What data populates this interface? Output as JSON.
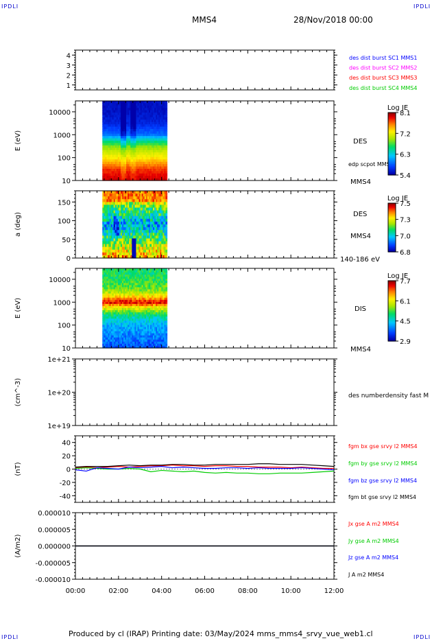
{
  "header": {
    "corner_tl": "IPDLI",
    "corner_tr": "IPDLI",
    "spacecraft": "MMS4",
    "date": "28/Nov/2018 00:00"
  },
  "footer": {
    "text": "Produced by cl (IRAP)   Printing date: 03/May/2024   mms_mms4_srvy_vue_web1.cl",
    "corner_bl": "IPDLI",
    "corner_br": "IPDLI"
  },
  "colors": {
    "blue": "#0000ff",
    "magenta": "#ff00ff",
    "red": "#ff0000",
    "green": "#00cc00",
    "black": "#000000"
  },
  "chart_data": [
    {
      "type": "line",
      "title": "",
      "ylabel": "",
      "ylim": [
        0.5,
        4.5
      ],
      "yticks": [
        "1",
        "2",
        "3",
        "4"
      ],
      "legend_placement": "right",
      "series": [
        {
          "name": "des dist burst SC1 MMS1",
          "color": "#0000ff",
          "values": []
        },
        {
          "name": "des dist burst SC2 MMS2",
          "color": "#ff00ff",
          "values": []
        },
        {
          "name": "des dist burst SC3 MMS3",
          "color": "#ff0000",
          "values": []
        },
        {
          "name": "des dist burst SC4 MMS4",
          "color": "#00cc00",
          "values": []
        }
      ]
    },
    {
      "type": "heatmap",
      "ylabel": "E (eV)",
      "yscale": "log",
      "ylim": [
        10,
        30000
      ],
      "yticks": [
        "10",
        "100",
        "1000",
        "10000"
      ],
      "instrument": "DES",
      "sublabel": "edp scpot MMS4",
      "satlabel": "MMS4",
      "colorbar": {
        "title": "Log JE",
        "ticks": [
          "8.1",
          "7.2",
          "6.3",
          "5.4"
        ]
      },
      "data_time_range": [
        "01:15",
        "04:15"
      ],
      "energy_profile": {
        "energies": [
          10,
          30,
          100,
          300,
          600,
          1000,
          3000,
          10000,
          30000
        ],
        "log_je": [
          8.0,
          7.8,
          7.3,
          6.9,
          6.4,
          5.9,
          5.6,
          5.5,
          5.5
        ]
      }
    },
    {
      "type": "heatmap",
      "ylabel": "a (deg)",
      "ylim": [
        0,
        180
      ],
      "yticks": [
        "0",
        "50",
        "100",
        "150"
      ],
      "instrument": "DES",
      "satlabel": "MMS4",
      "energy_range": "140-186 eV",
      "colorbar": {
        "title": "Log JE",
        "ticks": [
          "7.5",
          "7.3",
          "7.0",
          "6.8"
        ]
      },
      "data_time_range": [
        "01:15",
        "04:15"
      ]
    },
    {
      "type": "heatmap",
      "ylabel": "E (eV)",
      "yscale": "log",
      "ylim": [
        10,
        30000
      ],
      "yticks": [
        "10",
        "100",
        "1000",
        "10000"
      ],
      "instrument": "DIS",
      "satlabel": "MMS4",
      "colorbar": {
        "title": "Log JE",
        "ticks": [
          "7.7",
          "6.1",
          "4.5",
          "2.9"
        ]
      },
      "data_time_range": [
        "01:15",
        "04:15"
      ],
      "energy_profile": {
        "energies": [
          10,
          100,
          300,
          600,
          1000,
          1500,
          3000,
          10000,
          30000
        ],
        "log_je": [
          3.6,
          4.2,
          5.0,
          6.2,
          7.5,
          6.6,
          5.6,
          5.1,
          5.0
        ]
      }
    },
    {
      "type": "line",
      "ylabel": "(cm^-3)",
      "yscale": "log",
      "ylim": [
        1e+19,
        1e+21
      ],
      "yticks": [
        "1e+19",
        "1e+20",
        "1e+21"
      ],
      "series": [
        {
          "name": "des numberdensity fast M",
          "color": "#000000",
          "values": []
        }
      ]
    },
    {
      "type": "line",
      "ylabel": "(nT)",
      "ylim": [
        -50,
        50
      ],
      "yticks": [
        "-40",
        "-20",
        "0",
        "20",
        "40"
      ],
      "x": [
        "00:00",
        "00:30",
        "01:00",
        "01:30",
        "02:00",
        "02:30",
        "03:00",
        "03:30",
        "04:00",
        "04:30",
        "05:00",
        "05:30",
        "06:00",
        "06:30",
        "07:00",
        "07:30",
        "08:00",
        "08:30",
        "09:00",
        "09:30",
        "10:00",
        "10:30",
        "11:00",
        "11:30",
        "12:00"
      ],
      "series": [
        {
          "name": "fgm bx gse srvy l2 MMS4",
          "color": "#ff0000",
          "values": [
            2,
            3,
            2,
            3,
            4,
            3,
            4,
            5,
            5,
            6,
            5,
            5,
            4,
            5,
            5,
            4,
            4,
            3,
            3,
            3,
            2,
            3,
            2,
            1,
            1
          ]
        },
        {
          "name": "fgm by gse srvy l2 MMS4",
          "color": "#00cc00",
          "values": [
            1,
            2,
            1,
            0,
            0,
            1,
            0,
            -4,
            -2,
            -3,
            -4,
            -3,
            -5,
            -6,
            -5,
            -6,
            -6,
            -7,
            -7,
            -6,
            -6,
            -6,
            -5,
            -4,
            -3
          ]
        },
        {
          "name": "fgm bz gse srvy l2 MMS4",
          "color": "#0000ff",
          "values": [
            -1,
            -3,
            2,
            1,
            0,
            3,
            2,
            3,
            4,
            2,
            3,
            2,
            1,
            1,
            2,
            2,
            1,
            2,
            1,
            1,
            1,
            2,
            1,
            0,
            -1
          ]
        },
        {
          "name": "fgm bt gse srvy l2 MMS4",
          "color": "#000000",
          "values": [
            3,
            4,
            4,
            4,
            5,
            6,
            5,
            6,
            6,
            7,
            7,
            6,
            6,
            7,
            7,
            7,
            7,
            8,
            8,
            7,
            7,
            7,
            6,
            5,
            4
          ]
        }
      ]
    },
    {
      "type": "line",
      "ylabel": "(A/m2)",
      "ylim": [
        -1e-05,
        1e-05
      ],
      "yticks": [
        "-0.000010",
        "-0.000005",
        "0.000000",
        "0.000005",
        "0.000010"
      ],
      "xticks": [
        "00:00",
        "02:00",
        "04:00",
        "06:00",
        "08:00",
        "10:00",
        "12:00"
      ],
      "series": [
        {
          "name": "Jx gse A m2 MMS4",
          "color": "#ff0000",
          "values": [
            0,
            0,
            0,
            0,
            0,
            0,
            0
          ]
        },
        {
          "name": "Jy gse A m2 MMS4",
          "color": "#00cc00",
          "values": [
            0,
            0,
            0,
            0,
            0,
            0,
            0
          ]
        },
        {
          "name": "Jz gse A m2 MMS4",
          "color": "#0000ff",
          "values": [
            0,
            0,
            0,
            0,
            0,
            0,
            0
          ]
        },
        {
          "name": "J A m2 MMS4",
          "color": "#000000",
          "values": [
            0,
            0,
            0,
            0,
            0,
            0,
            0
          ]
        }
      ]
    }
  ]
}
